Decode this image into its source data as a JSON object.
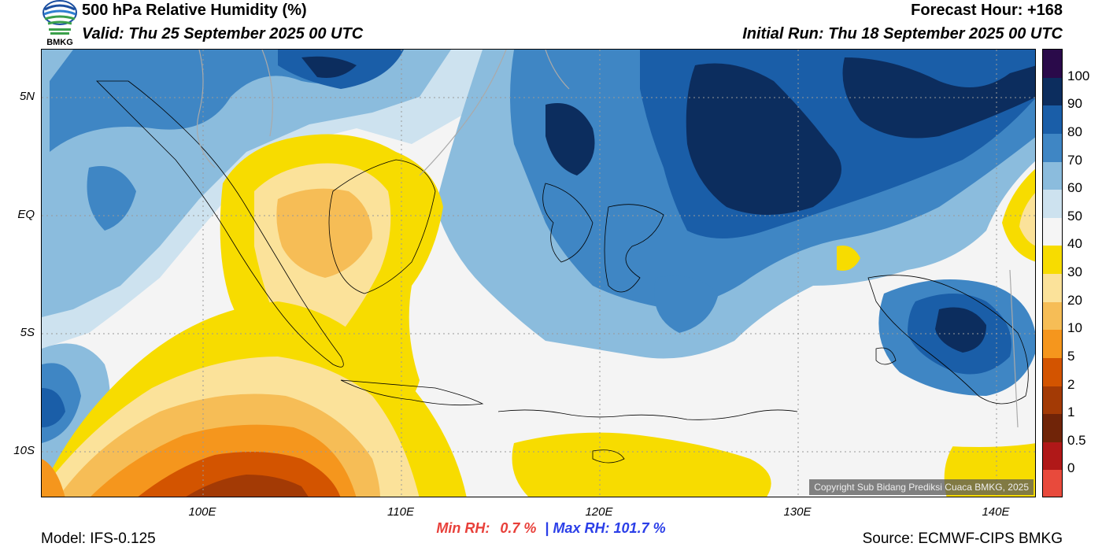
{
  "header": {
    "title": "500 hPa Relative Humidity (%)",
    "valid": "Valid: Thu 25 September 2025 00 UTC",
    "forecast_hour": "Forecast Hour: +168",
    "initial_run": "Initial Run: Thu 18 September 2025 00 UTC",
    "logo_text": "BMKG"
  },
  "map": {
    "lat_labels": [
      "5N",
      "EQ",
      "5S",
      "10S"
    ],
    "lon_labels": [
      "100E",
      "110E",
      "120E",
      "130E",
      "140E"
    ],
    "copyright": "Copyright Sub Bidang Prediksi Cuaca BMKG, 2025"
  },
  "colorbar": {
    "labels": [
      "100",
      "90",
      "80",
      "70",
      "60",
      "50",
      "40",
      "30",
      "20",
      "10",
      "5",
      "2",
      "1",
      "0.5",
      "0"
    ],
    "colors": [
      "#2a0a4a",
      "#0c2d5e",
      "#1a5ea8",
      "#3f86c4",
      "#8bbcdd",
      "#cde2ef",
      "#f5f5f5",
      "#f7dc00",
      "#fbe29a",
      "#f6bd56",
      "#f5961d",
      "#d35400",
      "#a33a05",
      "#702408",
      "#b01818",
      "#e84a3c"
    ]
  },
  "footer": {
    "min_rh_label": "Min RH:",
    "min_rh_value": "0.7 %",
    "separator": "|",
    "max_rh_label": "Max RH:",
    "max_rh_value": "101.7 %",
    "model": "Model: IFS-0.125",
    "source": "Source: ECMWF-CIPS BMKG"
  }
}
